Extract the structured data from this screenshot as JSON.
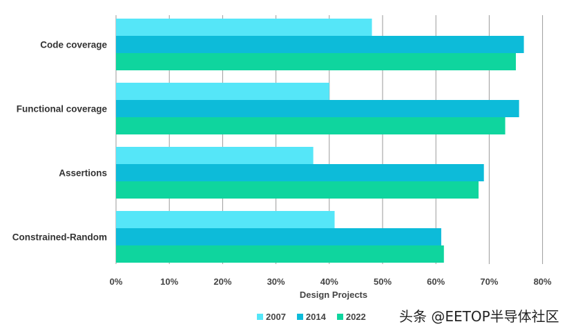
{
  "chart_data": {
    "type": "bar",
    "orientation": "horizontal",
    "categories": [
      "Code coverage",
      "Functional coverage",
      "Assertions",
      "Constrained-Random"
    ],
    "series": [
      {
        "name": "2007",
        "color": "#55E6F8",
        "values": [
          48,
          40,
          37,
          41
        ]
      },
      {
        "name": "2014",
        "color": "#0DBBD9",
        "values": [
          76.5,
          75.6,
          69,
          61
        ]
      },
      {
        "name": "2022",
        "color": "#0FD59E",
        "values": [
          75,
          73,
          68,
          61.5
        ]
      }
    ],
    "xlabel": "Design Projects",
    "xlim": [
      0,
      80
    ],
    "xticks": [
      0,
      10,
      20,
      30,
      40,
      50,
      60,
      70,
      80
    ],
    "tick_format": "percent",
    "grid": true,
    "legend_position": "bottom"
  },
  "watermark": "头条 @EETOP半导体社区"
}
